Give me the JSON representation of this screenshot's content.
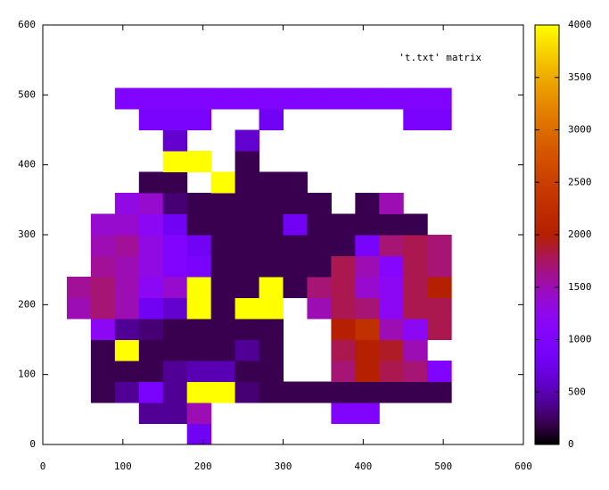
{
  "chart_data": {
    "type": "heatmap",
    "palette": "gnuplot",
    "key": "'t.txt' matrix",
    "xlim": [
      0,
      600
    ],
    "ylim": [
      0,
      600
    ],
    "xticks": [
      0,
      100,
      200,
      300,
      400,
      500,
      600
    ],
    "yticks": [
      0,
      100,
      200,
      300,
      400,
      500,
      600
    ],
    "cblim": [
      0,
      4000
    ],
    "cbticks": [
      0,
      500,
      1000,
      1500,
      2000,
      2500,
      3000,
      3500,
      4000
    ],
    "x": [
      15,
      45,
      75,
      105,
      135,
      165,
      195,
      225,
      255,
      285,
      315,
      345,
      375,
      405,
      435,
      465,
      495
    ],
    "y": [
      15,
      45,
      75,
      105,
      135,
      165,
      195,
      225,
      255,
      285,
      315,
      345,
      375,
      405,
      435,
      465,
      495
    ],
    "values": [
      [
        null,
        null,
        null,
        null,
        null,
        null,
        800,
        null,
        null,
        null,
        null,
        null,
        null,
        null,
        null,
        null,
        null
      ],
      [
        null,
        null,
        null,
        null,
        400,
        400,
        1500,
        null,
        null,
        null,
        null,
        null,
        1000,
        1000,
        null,
        null,
        null
      ],
      [
        null,
        null,
        200,
        400,
        900,
        400,
        4000,
        4000,
        300,
        200,
        200,
        200,
        200,
        200,
        200,
        200,
        200
      ],
      [
        null,
        null,
        200,
        200,
        200,
        400,
        500,
        500,
        200,
        200,
        null,
        null,
        1700,
        2000,
        1800,
        1700,
        1000
      ],
      [
        null,
        null,
        200,
        4000,
        200,
        200,
        200,
        200,
        400,
        200,
        null,
        null,
        1800,
        2000,
        1900,
        1500,
        null
      ],
      [
        null,
        null,
        1200,
        400,
        300,
        200,
        200,
        200,
        200,
        200,
        null,
        null,
        2000,
        2300,
        1500,
        1200,
        1800
      ],
      [
        null,
        1500,
        1700,
        1500,
        800,
        600,
        4000,
        200,
        4000,
        4000,
        null,
        1500,
        1800,
        1700,
        1200,
        1800,
        1800
      ],
      [
        null,
        1600,
        1700,
        1500,
        1200,
        1400,
        4000,
        200,
        200,
        4000,
        200,
        1700,
        1800,
        1400,
        1200,
        1800,
        2000
      ],
      [
        null,
        null,
        1600,
        1500,
        1300,
        1000,
        900,
        200,
        200,
        200,
        200,
        200,
        1800,
        1500,
        1100,
        1800,
        1700
      ],
      [
        null,
        null,
        1500,
        1600,
        1300,
        1000,
        800,
        200,
        200,
        200,
        200,
        200,
        200,
        900,
        1700,
        1800,
        1700
      ],
      [
        null,
        null,
        1400,
        1400,
        1200,
        800,
        200,
        200,
        200,
        200,
        800,
        200,
        200,
        200,
        200,
        200,
        null
      ],
      [
        null,
        null,
        null,
        1300,
        1400,
        300,
        200,
        200,
        200,
        200,
        200,
        200,
        null,
        200,
        1500,
        null,
        null
      ],
      [
        null,
        null,
        null,
        null,
        200,
        200,
        null,
        4000,
        200,
        200,
        200,
        null,
        null,
        null,
        null,
        null,
        null
      ],
      [
        null,
        null,
        null,
        null,
        null,
        4000,
        4000,
        null,
        200,
        null,
        null,
        null,
        null,
        null,
        null,
        null,
        null
      ],
      [
        null,
        null,
        null,
        null,
        null,
        600,
        null,
        null,
        600,
        null,
        null,
        null,
        null,
        null,
        null,
        null,
        null
      ],
      [
        null,
        null,
        null,
        null,
        900,
        900,
        900,
        null,
        null,
        800,
        null,
        null,
        null,
        null,
        null,
        900,
        900
      ],
      [
        null,
        null,
        null,
        1000,
        1000,
        1000,
        1000,
        1000,
        1000,
        1000,
        1000,
        1000,
        1000,
        1000,
        1000,
        1000,
        1000
      ]
    ]
  }
}
